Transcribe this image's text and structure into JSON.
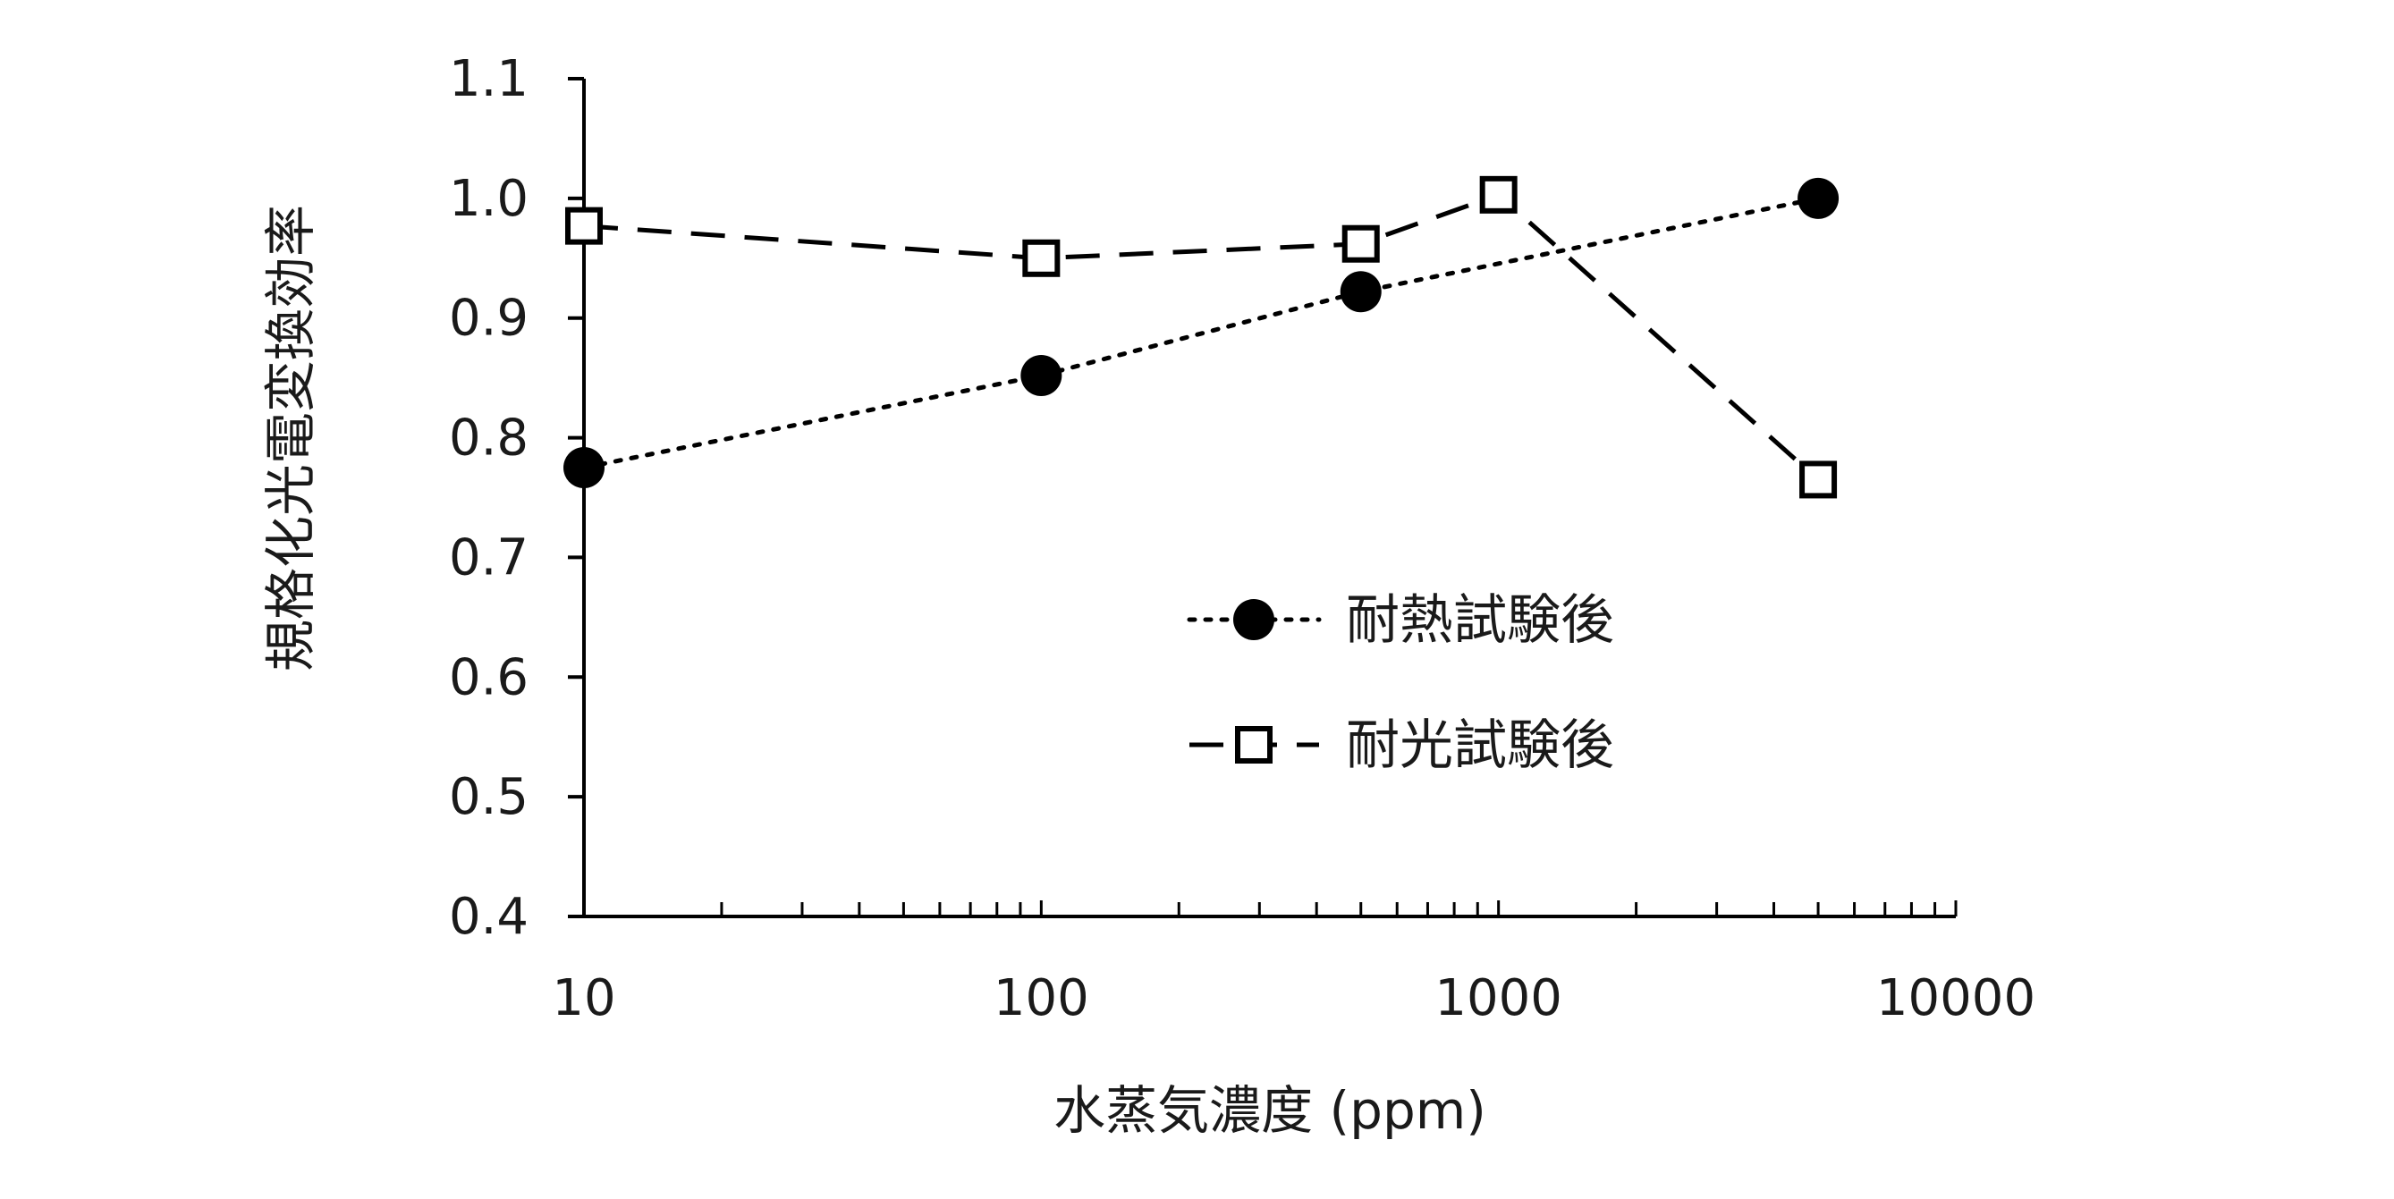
{
  "chart_data": {
    "type": "line",
    "title": "",
    "xlabel": "水蒸気濃度 (ppm)",
    "ylabel": "規格化光電変換効率",
    "x_scale": "log",
    "xlim": [
      10,
      10000
    ],
    "ylim": [
      0.4,
      1.1
    ],
    "x_ticks": [
      "10",
      "100",
      "1000",
      "10000"
    ],
    "y_ticks": [
      "0.4",
      "0.5",
      "0.6",
      "0.7",
      "0.8",
      "0.9",
      "1.0",
      "1.1"
    ],
    "grid": false,
    "legend_position": "center-right",
    "series": [
      {
        "name": "耐熱試験後",
        "marker": "filled-circle",
        "line_style": "dotted",
        "color": "#000000",
        "x": [
          10,
          100,
          500,
          5000
        ],
        "y": [
          0.775,
          0.852,
          0.922,
          1.0
        ]
      },
      {
        "name": "耐光試験後",
        "marker": "open-square",
        "line_style": "dashed",
        "color": "#000000",
        "x": [
          10,
          100,
          500,
          1000,
          5000
        ],
        "y": [
          0.977,
          0.95,
          0.962,
          1.003,
          0.765
        ]
      }
    ]
  }
}
